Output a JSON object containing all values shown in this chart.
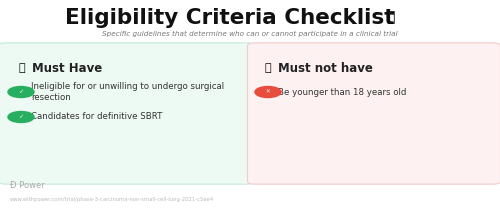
{
  "title": "Eligibility Criteria Checklist",
  "subtitle": "Specific guidelines that determine who can or cannot participate in a clinical trial",
  "left_panel": {
    "header": "Must Have",
    "bg_color": "#edfaf3",
    "border_color": "#c5ead7",
    "items": [
      "Ineligible for or unwilling to undergo surgical\nresection",
      "Candidates for definitive SBRT"
    ],
    "item_icon_color": "#27ae60"
  },
  "right_panel": {
    "header": "Must not have",
    "bg_color": "#fdf1f1",
    "border_color": "#f0cccc",
    "items": [
      "Be younger than 18 years old"
    ],
    "item_icon_color": "#e74c3c"
  },
  "footer_url": "www.withpower.com/trial/phase-3-carcinoma-non-small-cell-lung-2021-c5ee4",
  "bg_color": "#ffffff",
  "title_color": "#111111",
  "subtitle_color": "#777777",
  "header_color": "#222222",
  "item_text_color": "#333333",
  "footer_color": "#aaaaaa"
}
